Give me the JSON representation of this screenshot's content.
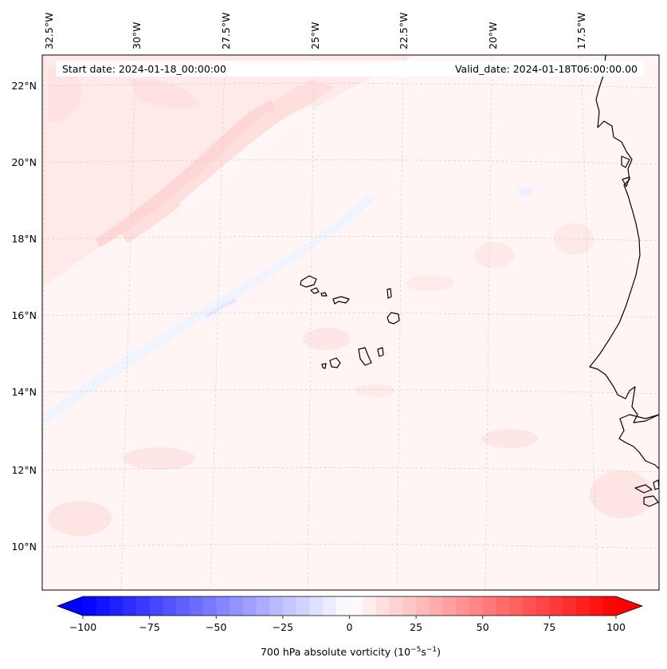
{
  "map": {
    "start_date": "Start date: 2024-01-18_00:00:00",
    "valid_date": "Valid_date: 2024-01-18T06:00:00.00",
    "lon_labels": [
      "32.5°W",
      "30°W",
      "27.5°W",
      "25°W",
      "22.5°W",
      "20°W",
      "17.5°W"
    ],
    "lat_labels": [
      "22°N",
      "20°N",
      "18°N",
      "16°N",
      "14°N",
      "12°N",
      "10°N"
    ],
    "field_name": "700 hPa absolute vorticity",
    "region": "Cabo Verde and West African coast"
  },
  "colorbar": {
    "label_text": "700 hPa absolute vorticity (10",
    "label_exp1": "−5",
    "label_mid": "s",
    "label_exp2": "−1",
    "label_close": ")",
    "ticks": [
      "−100",
      "−75",
      "−50",
      "−25",
      "0",
      "25",
      "50",
      "75",
      "100"
    ],
    "min": -100,
    "max": 100,
    "levels": 41,
    "colormap": "bwr",
    "color_low": "#0000ff",
    "color_mid": "#ffffff",
    "color_high": "#ff0000"
  },
  "colors": {
    "background_field": "#fff5f5",
    "pos_light": "#ffe6e6",
    "pos_mid": "#ffd9d9",
    "neg_light": "#f0f4ff",
    "coastline": "#000000",
    "gridline": "#c8c8c8"
  }
}
